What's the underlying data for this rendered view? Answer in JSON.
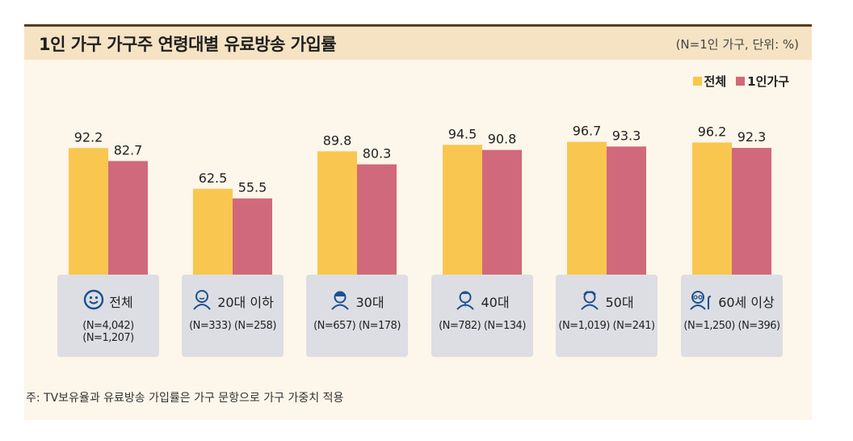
{
  "title": "1인 가구 가구주 연령대별 유료방송 가입률",
  "unit_note": "(N=1인 가구, 단위: %)",
  "legend": [
    {
      "label": "전체",
      "color": "#f9c74f"
    },
    {
      "label": "1인가구",
      "color": "#d0697b"
    }
  ],
  "groups": [
    {
      "name": "전체",
      "icon": "smiley-face-icon",
      "n_total": "(N=4,042)",
      "n_single": "(N=1,207)"
    },
    {
      "name": "20대 이하",
      "icon": "young-person-icon",
      "n_total": "(N=333)",
      "n_single": "(N=258)"
    },
    {
      "name": "30대",
      "icon": "thirties-person-icon",
      "n_total": "(N=657)",
      "n_single": "(N=178)"
    },
    {
      "name": "40대",
      "icon": "forties-person-icon",
      "n_total": "(N=782)",
      "n_single": "(N=134)"
    },
    {
      "name": "50대",
      "icon": "fifties-person-icon",
      "n_total": "(N=1,019)",
      "n_single": "(N=241)"
    },
    {
      "name": "60세 이상",
      "icon": "elderly-person-icon",
      "n_total": "(N=1,250)",
      "n_single": "(N=396)"
    }
  ],
  "chart_data": {
    "type": "bar",
    "title": "1인 가구 가구주 연령대별 유료방송 가입률",
    "categories": [
      "전체",
      "20대 이하",
      "30대",
      "40대",
      "50대",
      "60세 이상"
    ],
    "series": [
      {
        "name": "전체",
        "values": [
          92.2,
          62.5,
          89.8,
          94.5,
          96.7,
          96.2
        ],
        "labels": [
          "92.2",
          "62.5",
          "89.8",
          "94.5",
          "96.7",
          "96.2"
        ]
      },
      {
        "name": "1인가구",
        "values": [
          82.7,
          55.5,
          80.3,
          90.8,
          93.3,
          92.3
        ],
        "labels": [
          "82.7",
          "55.5",
          "80.3",
          "90.8",
          "93.3",
          "92.3"
        ]
      }
    ],
    "ylim": [
      0,
      100
    ],
    "grid": false,
    "legend_position": "top-right",
    "colors": [
      "#f9c74f",
      "#d0697b"
    ]
  },
  "footnote": "주: TV보유율과 유료방송 가입률은 가구 문항으로 가구 가중치 적용"
}
